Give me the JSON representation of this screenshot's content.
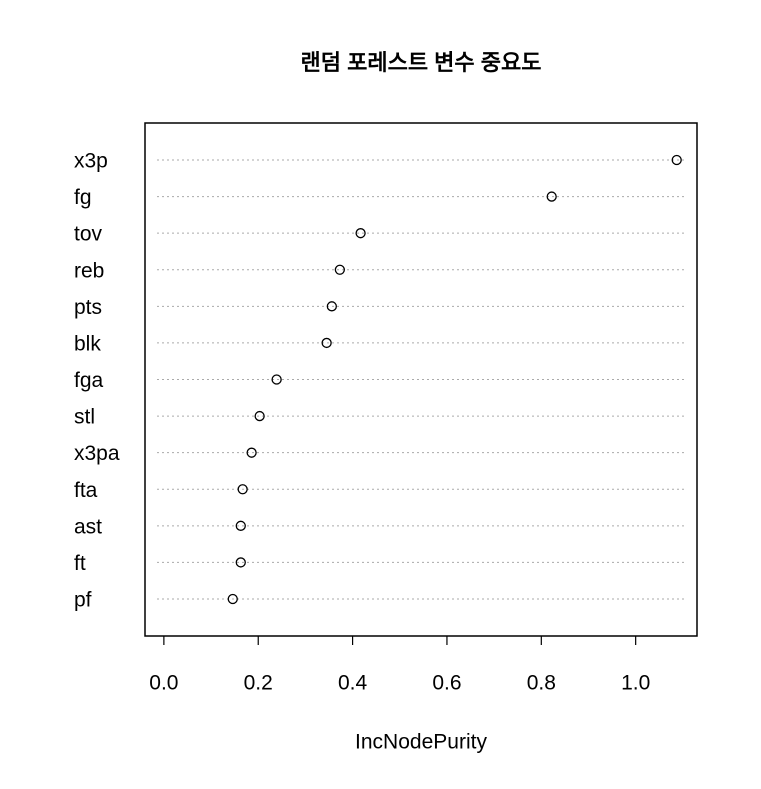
{
  "chart_data": {
    "type": "dotchart",
    "title": "랜덤 포레스트 변수 중요도",
    "x_label": "IncNodePurity",
    "categories": [
      "x3p",
      "fg",
      "tov",
      "reb",
      "pts",
      "blk",
      "fga",
      "stl",
      "x3pa",
      "fta",
      "ast",
      "ft",
      "pf"
    ],
    "values": [
      1.087,
      0.822,
      0.417,
      0.373,
      0.356,
      0.345,
      0.239,
      0.203,
      0.186,
      0.167,
      0.163,
      0.163,
      0.146
    ],
    "xlim": [
      -0.04,
      1.13
    ],
    "xticks": [
      {
        "value": 0,
        "label": "0.0"
      },
      0.2,
      0.4,
      0.6,
      0.8,
      {
        "value": 1,
        "label": "1.0"
      }
    ],
    "color": "#000000"
  }
}
